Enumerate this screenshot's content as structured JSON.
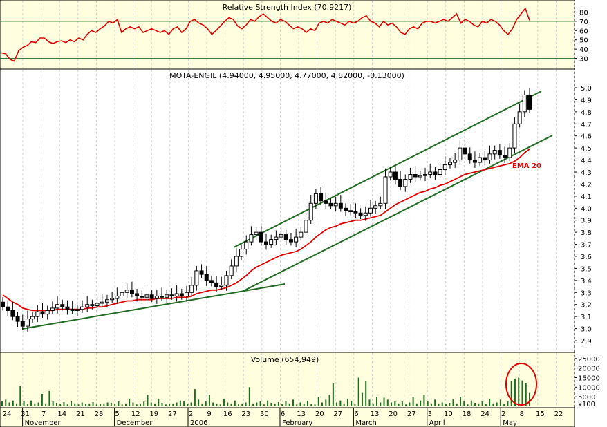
{
  "colors": {
    "panel_bg": "#ffffe0",
    "grid": "#d0d0d0",
    "candle": "#000000",
    "ema": "#e00000",
    "trendline": "#1f6b1f",
    "rsi_line": "#e00000",
    "rsi_level": "#1f6b1f",
    "volume": "#1f6b1f",
    "highlight": "#e00000"
  },
  "chart_data": [
    {
      "type": "line",
      "panel": "rsi",
      "title": "Relative Strength Index (70.9217)",
      "ylim": [
        20,
        90
      ],
      "yticks": [
        "80",
        "70",
        "60",
        "50",
        "40",
        "30"
      ],
      "levels": [
        70,
        30
      ],
      "series": [
        {
          "values": [
            36,
            35,
            29,
            27,
            38,
            42,
            44,
            48,
            47,
            52,
            52,
            48,
            46,
            48,
            49,
            47,
            50,
            48,
            52,
            50,
            56,
            60,
            58,
            62,
            65,
            70,
            68,
            72,
            58,
            62,
            64,
            62,
            64,
            58,
            60,
            62,
            60,
            58,
            60,
            56,
            62,
            64,
            58,
            62,
            70,
            72,
            68,
            66,
            62,
            56,
            60,
            65,
            70,
            74,
            72,
            65,
            62,
            66,
            72,
            70,
            75,
            78,
            74,
            70,
            68,
            72,
            70,
            66,
            62,
            64,
            62,
            58,
            62,
            60,
            68,
            70,
            68,
            72,
            70,
            68,
            66,
            70,
            68,
            70,
            74,
            76,
            70,
            68,
            64,
            70,
            66,
            68,
            64,
            58,
            56,
            62,
            64,
            62,
            68,
            70,
            70,
            68,
            70,
            72,
            70,
            74,
            78,
            68,
            72,
            70,
            66,
            64,
            70,
            68,
            72,
            70,
            66,
            60,
            56,
            62,
            72,
            78,
            84,
            71
          ]
        }
      ]
    },
    {
      "type": "candlestick",
      "panel": "price",
      "title": "MOTA-ENGIL (4.94000, 4.95000, 4.77000, 4.82000, -0.13000)",
      "ylim": [
        2.85,
        5.08
      ],
      "yticks": [
        "5.0",
        "4.9",
        "4.8",
        "4.7",
        "4.6",
        "4.5",
        "4.4",
        "4.3",
        "4.2",
        "4.1",
        "4.0",
        "3.9",
        "3.8",
        "3.7",
        "3.6",
        "3.5",
        "3.4",
        "3.3",
        "3.2",
        "3.1",
        "3.0",
        "2.9"
      ],
      "x_labels": [
        "24",
        "31",
        "7",
        "14",
        "21",
        "28",
        "5",
        "12",
        "19",
        "27",
        "2",
        "9",
        "16",
        "23",
        "30",
        "6",
        "13",
        "20",
        "27",
        "6",
        "13",
        "20",
        "27",
        "3",
        "10",
        "18",
        "24",
        "2",
        "8",
        "15",
        "22"
      ],
      "month_labels": [
        "November",
        "December",
        "2006",
        "February",
        "March",
        "April",
        "May"
      ],
      "close": [
        3.18,
        3.15,
        3.1,
        3.06,
        3.02,
        3.08,
        3.1,
        3.14,
        3.12,
        3.15,
        3.17,
        3.2,
        3.18,
        3.16,
        3.15,
        3.16,
        3.18,
        3.2,
        3.19,
        3.21,
        3.22,
        3.24,
        3.25,
        3.27,
        3.3,
        3.32,
        3.29,
        3.27,
        3.26,
        3.28,
        3.25,
        3.27,
        3.26,
        3.28,
        3.27,
        3.29,
        3.27,
        3.3,
        3.36,
        3.48,
        3.45,
        3.4,
        3.38,
        3.35,
        3.36,
        3.44,
        3.52,
        3.6,
        3.66,
        3.72,
        3.78,
        3.8,
        3.72,
        3.7,
        3.74,
        3.76,
        3.78,
        3.74,
        3.72,
        3.76,
        3.8,
        3.9,
        4.04,
        4.12,
        4.06,
        4.04,
        4.02,
        4.04,
        4.0,
        3.98,
        3.97,
        3.96,
        3.94,
        3.96,
        4.0,
        4.02,
        4.04,
        4.26,
        4.3,
        4.24,
        4.18,
        4.24,
        4.28,
        4.26,
        4.27,
        4.28,
        4.3,
        4.28,
        4.32,
        4.36,
        4.38,
        4.4,
        4.5,
        4.45,
        4.4,
        4.38,
        4.42,
        4.4,
        4.45,
        4.48,
        4.44,
        4.42,
        4.5,
        4.7,
        4.8,
        4.94,
        4.82
      ],
      "ema": [
        3.28,
        3.25,
        3.22,
        3.2,
        3.17,
        3.16,
        3.15,
        3.15,
        3.15,
        3.15,
        3.15,
        3.16,
        3.16,
        3.16,
        3.16,
        3.16,
        3.16,
        3.17,
        3.17,
        3.18,
        3.18,
        3.19,
        3.2,
        3.21,
        3.22,
        3.23,
        3.23,
        3.24,
        3.24,
        3.24,
        3.24,
        3.25,
        3.25,
        3.25,
        3.25,
        3.26,
        3.26,
        3.26,
        3.27,
        3.29,
        3.3,
        3.31,
        3.32,
        3.32,
        3.33,
        3.34,
        3.36,
        3.38,
        3.41,
        3.44,
        3.48,
        3.51,
        3.53,
        3.55,
        3.57,
        3.59,
        3.61,
        3.62,
        3.63,
        3.64,
        3.66,
        3.69,
        3.72,
        3.76,
        3.79,
        3.82,
        3.84,
        3.85,
        3.87,
        3.88,
        3.89,
        3.9,
        3.9,
        3.91,
        3.92,
        3.93,
        3.94,
        3.97,
        4.0,
        4.03,
        4.05,
        4.07,
        4.09,
        4.11,
        4.13,
        4.14,
        4.16,
        4.17,
        4.19,
        4.2,
        4.22,
        4.24,
        4.26,
        4.28,
        4.29,
        4.3,
        4.31,
        4.32,
        4.33,
        4.34,
        4.35,
        4.36,
        4.37,
        4.39,
        4.42,
        4.46,
        4.49
      ],
      "annotations": [
        "EMA 20"
      ]
    },
    {
      "type": "bar",
      "panel": "volume",
      "title": "Volume (654,949)",
      "ylim": [
        0,
        26000
      ],
      "yticks": [
        "25000",
        "20000",
        "15000",
        "10000",
        "5000"
      ],
      "multiplier_label": "x100",
      "values": [
        2500,
        3500,
        2000,
        3000,
        1500,
        10500,
        2500,
        1000,
        3000,
        1500,
        2000,
        6500,
        1500,
        8000,
        2500,
        1800,
        1200,
        2200,
        1000,
        2500,
        1500,
        1000,
        2000,
        1200,
        1500,
        2200,
        1000,
        1200,
        1500,
        2000,
        1800,
        1200,
        2500,
        1000,
        1500,
        4000,
        2000,
        1000,
        1500,
        2500,
        6000,
        2000,
        1500,
        4000,
        1800,
        1000,
        1200,
        1500,
        2000,
        3000,
        2500,
        1200,
        2000,
        9000,
        3500,
        1500,
        2500,
        6000,
        2000,
        1500,
        1000,
        4000,
        2000,
        1500,
        3000,
        1000,
        1500,
        2000,
        10000,
        1500,
        2000,
        2500,
        1000,
        3000,
        1800,
        1500,
        2200,
        1200,
        2500,
        1500,
        3500,
        1000,
        2000,
        1500,
        2800,
        1200,
        1000,
        5000,
        2000,
        3500,
        6000,
        12000,
        2000,
        3000,
        1500,
        4000,
        2500,
        1000,
        15000,
        7000,
        13000,
        3500,
        1500,
        5000,
        2000,
        4500,
        3500,
        2000,
        2500,
        1500,
        2500,
        1000,
        2000,
        5000,
        1500,
        3000,
        6000,
        2500,
        1500,
        3500,
        1500,
        2000,
        1200,
        1800,
        4000,
        1500,
        5000,
        2500,
        1000,
        3000,
        1800,
        1500,
        2500,
        1200,
        4000,
        1500,
        2000,
        3500,
        1200,
        2500,
        13000,
        14500,
        15000,
        13500,
        12000,
        7000
      ]
    }
  ]
}
